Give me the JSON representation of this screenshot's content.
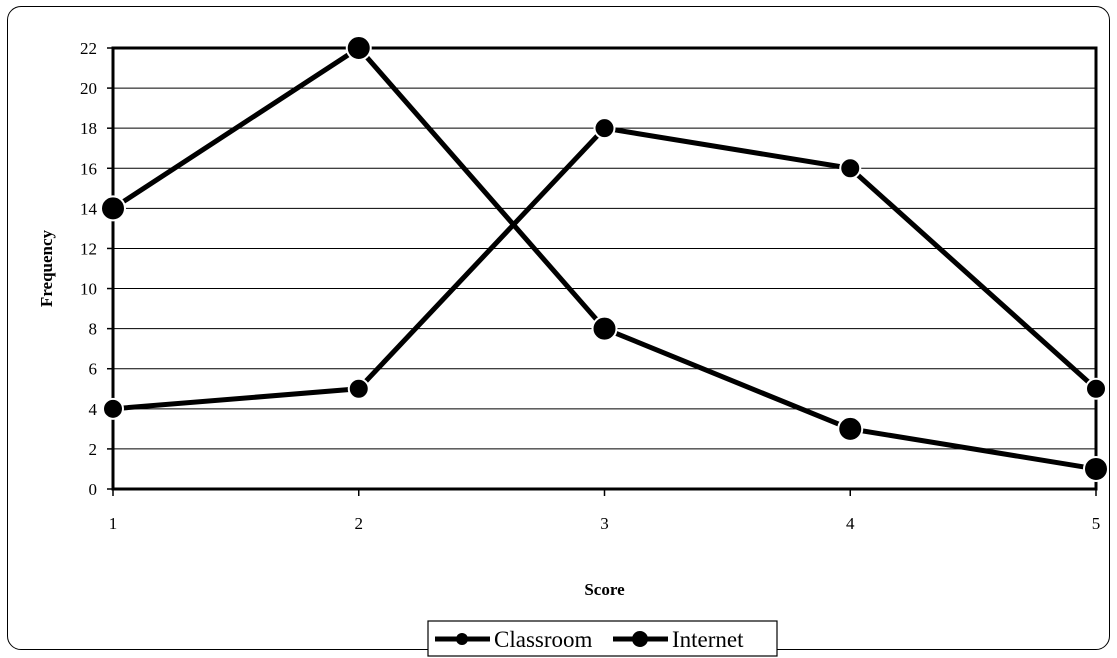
{
  "chart_data": {
    "type": "line",
    "title": "",
    "xlabel": "Score",
    "ylabel": "Frequency",
    "x": [
      1,
      2,
      3,
      4,
      5
    ],
    "ylim": [
      0,
      22
    ],
    "yticks": [
      0,
      2,
      4,
      6,
      8,
      10,
      12,
      14,
      16,
      18,
      20,
      22
    ],
    "grid": "horizontal",
    "legend_position": "bottom",
    "series": [
      {
        "name": "Classroom",
        "values": [
          4,
          5,
          18,
          16,
          5
        ],
        "marker": "small-circle",
        "color": "#000000"
      },
      {
        "name": "Internet",
        "values": [
          14,
          22,
          8,
          3,
          1
        ],
        "marker": "large-circle",
        "color": "#000000"
      }
    ]
  }
}
